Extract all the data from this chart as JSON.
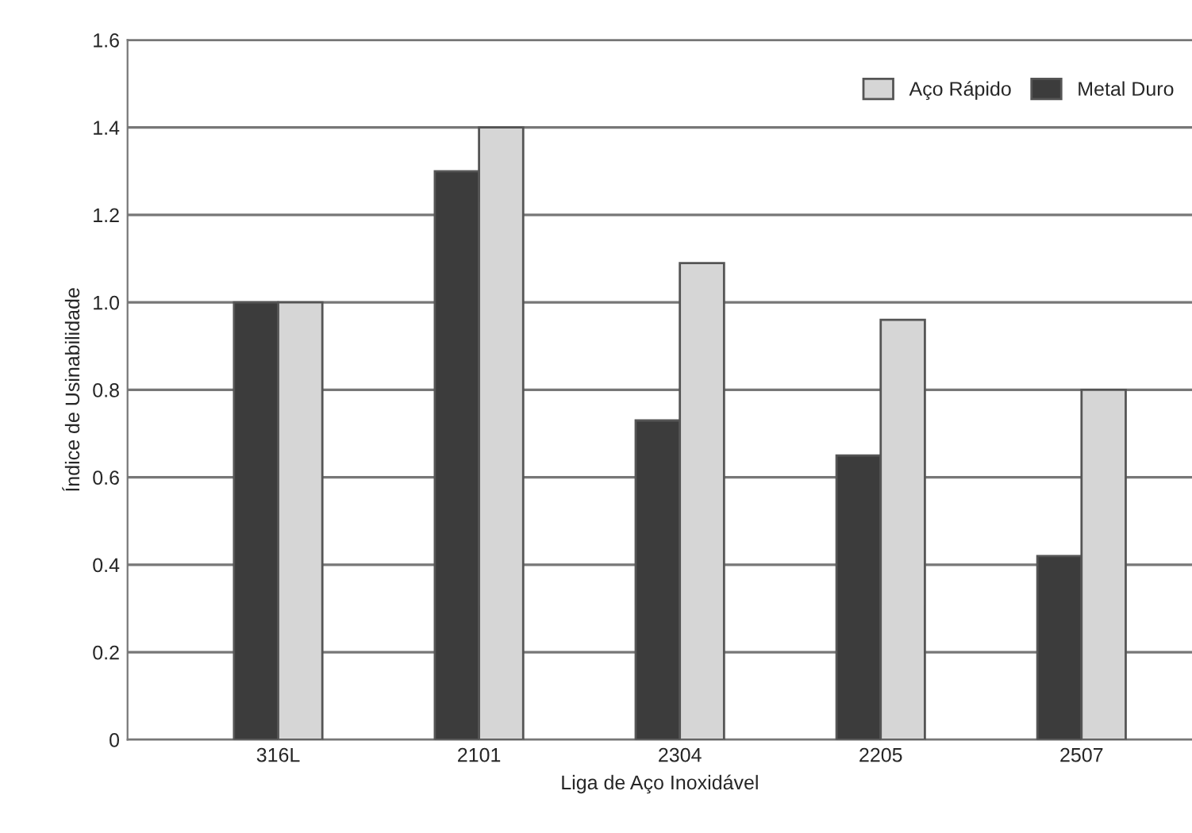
{
  "chart_data": {
    "type": "bar",
    "xlabel": "Liga de Aço Inoxidável",
    "ylabel": "Índice de Usinabilidade",
    "categories": [
      "316L",
      "2101",
      "2304",
      "2205",
      "2507"
    ],
    "series": [
      {
        "name": "Metal Duro",
        "color": "#3c3c3c",
        "values": [
          1.0,
          1.3,
          0.73,
          0.65,
          0.42
        ]
      },
      {
        "name": "Aço Rápido",
        "color": "#d6d6d6",
        "values": [
          1.0,
          1.4,
          1.09,
          0.96,
          0.8
        ]
      }
    ],
    "ylim": [
      0,
      1.6
    ],
    "yticks": [
      0,
      0.2,
      0.4,
      0.6,
      0.8,
      {
        "value": 1,
        "label": "1.0"
      },
      1.2,
      1.4,
      1.6
    ],
    "grid": "y",
    "legend": "top right"
  }
}
